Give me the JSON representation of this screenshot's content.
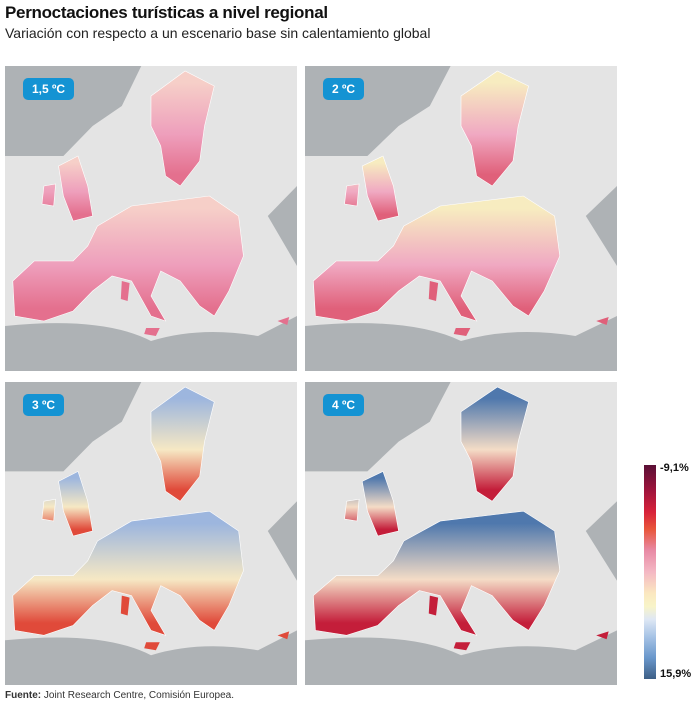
{
  "header": {
    "title": "Pernoctaciones turísticas a nivel regional",
    "subtitle": "Variación con respecto a un escenario base sin calentamiento global"
  },
  "maps": [
    {
      "label": "1,5 ºC",
      "north": "#f6cfc8",
      "centre": "#ee9fbc",
      "south": "#e4708e"
    },
    {
      "label": "2 ºC",
      "north": "#f7ecc0",
      "centre": "#f0a9c2",
      "south": "#e0607a"
    },
    {
      "label": "3 ºC",
      "north": "#9db6de",
      "centre": "#f6e8c4",
      "south": "#e04a3a"
    },
    {
      "label": "4 ºC",
      "north": "#4f78ad",
      "centre": "#f4dcc6",
      "south": "#c41e3a"
    }
  ],
  "legend": {
    "max_label": "-9,1%",
    "min_label": "15,9%",
    "colors": [
      "#5a1036",
      "#d8223a",
      "#e8563a",
      "#f4b8c4",
      "#f8f4c8",
      "#a8c4e6",
      "#3d5f86"
    ]
  },
  "footer": {
    "source_label": "Fuente:",
    "source_text": " Joint Research Centre, Comisión Europea."
  }
}
